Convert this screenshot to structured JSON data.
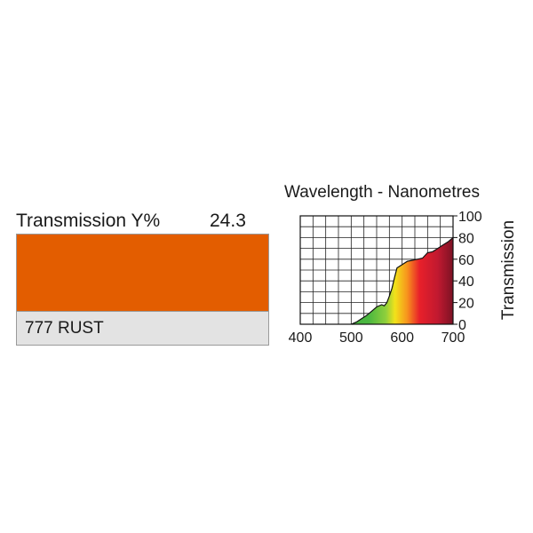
{
  "filter": {
    "transmission_label": "Transmission Y%",
    "transmission_value": "24.3",
    "name": "777 RUST",
    "swatch_color": "#e35d00",
    "name_box_color": "#e3e3e3"
  },
  "chart_data": {
    "type": "area",
    "title": "Wavelength - Nanometres",
    "xlabel": "",
    "ylabel": "Transmission",
    "xlim": [
      400,
      700
    ],
    "ylim": [
      0,
      100
    ],
    "x_ticks": [
      "400",
      "500",
      "600",
      "700"
    ],
    "y_ticks": [
      "0",
      "20",
      "40",
      "60",
      "80",
      "100"
    ],
    "grid": true,
    "fill": "visible-spectrum gradient",
    "series": [
      {
        "x": [
          500,
          510,
          520,
          530,
          540,
          550,
          560,
          565,
          570,
          575,
          580,
          585,
          590,
          600,
          610,
          620,
          630,
          640,
          650,
          660,
          670,
          680,
          690,
          700
        ],
        "y": [
          0,
          2,
          5,
          8,
          12,
          16,
          18,
          17,
          20,
          26,
          33,
          43,
          52,
          55,
          58,
          59,
          60,
          61,
          66,
          67,
          70,
          73,
          76,
          80
        ]
      }
    ]
  }
}
